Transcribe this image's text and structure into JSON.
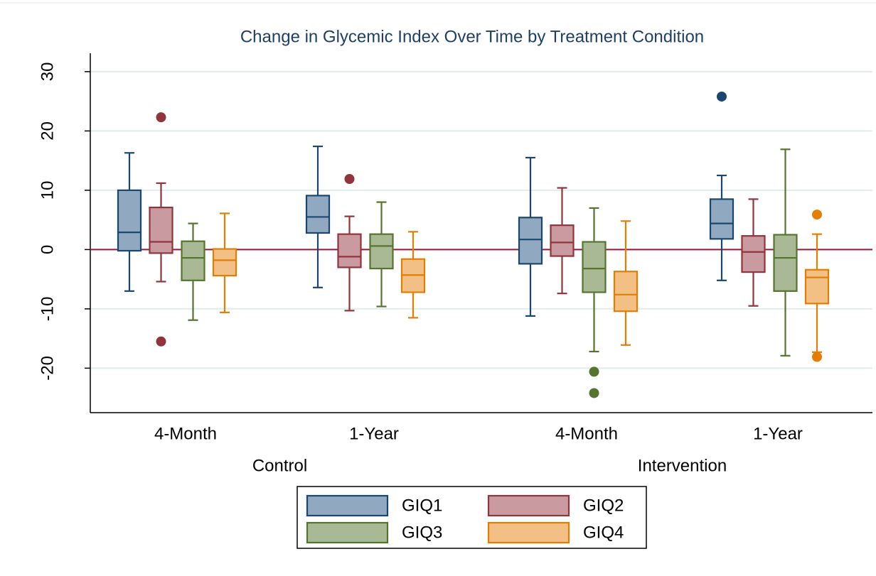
{
  "chart_data": {
    "type": "box",
    "title": "Change in Glycemic Index Over Time by Treatment Condition",
    "groups": [
      {
        "name": "Control",
        "categories": [
          "4-Month",
          "1-Year"
        ]
      },
      {
        "name": "Intervention",
        "categories": [
          "4-Month",
          "1-Year"
        ]
      }
    ],
    "ylim": [
      -27.5,
      32.5
    ],
    "yticks": [
      -20,
      -10,
      0,
      10,
      20,
      30
    ],
    "grid": true,
    "yline": 0,
    "yline_color": "#a0153e",
    "legend": "bottom",
    "series": [
      {
        "name": "GIQ1",
        "color": "#1a476f",
        "fill": "#90a8c0",
        "boxes": [
          {
            "min": -7.0,
            "q1": -0.2,
            "median": 2.9,
            "q3": 10.0,
            "max": 16.3
          },
          {
            "min": -6.4,
            "q1": 2.8,
            "median": 5.5,
            "q3": 9.1,
            "max": 17.4
          },
          {
            "min": -11.2,
            "q1": -2.4,
            "median": 1.7,
            "q3": 5.4,
            "max": 15.5
          },
          {
            "min": -5.2,
            "q1": 1.8,
            "median": 4.4,
            "q3": 8.5,
            "max": 12.5,
            "outliers": [
              25.8
            ]
          }
        ]
      },
      {
        "name": "GIQ2",
        "color": "#90353b",
        "fill": "#c99ba0",
        "boxes": [
          {
            "min": -5.4,
            "q1": -0.6,
            "median": 1.3,
            "q3": 7.1,
            "max": 11.2,
            "outliers": [
              22.3,
              -15.5
            ]
          },
          {
            "min": -10.3,
            "q1": -3.0,
            "median": -1.2,
            "q3": 2.6,
            "max": 5.6,
            "outliers": [
              11.9
            ]
          },
          {
            "min": -7.4,
            "q1": -1.1,
            "median": 1.2,
            "q3": 4.1,
            "max": 10.4
          },
          {
            "min": -9.5,
            "q1": -3.8,
            "median": -0.4,
            "q3": 2.3,
            "max": 8.5
          }
        ]
      },
      {
        "name": "GIQ3",
        "color": "#55752f",
        "fill": "#a9b995",
        "boxes": [
          {
            "min": -11.9,
            "q1": -5.2,
            "median": -1.4,
            "q3": 1.4,
            "max": 4.4
          },
          {
            "min": -9.6,
            "q1": -3.2,
            "median": 0.6,
            "q3": 2.6,
            "max": 8.0
          },
          {
            "min": -17.2,
            "q1": -7.2,
            "median": -3.2,
            "q3": 1.3,
            "max": 7.0,
            "outliers": [
              -20.6,
              -24.2
            ]
          },
          {
            "min": -17.9,
            "q1": -7.0,
            "median": -1.4,
            "q3": 2.5,
            "max": 16.9
          }
        ]
      },
      {
        "name": "GIQ4",
        "color": "#e37e00",
        "fill": "#f2c085",
        "boxes": [
          {
            "min": -10.6,
            "q1": -4.4,
            "median": -1.8,
            "q3": 0.1,
            "max": 6.1
          },
          {
            "min": -11.5,
            "q1": -7.2,
            "median": -4.3,
            "q3": -1.6,
            "max": 3.0
          },
          {
            "min": -16.1,
            "q1": -10.4,
            "median": -7.6,
            "q3": -3.7,
            "max": 4.8
          },
          {
            "min": -17.3,
            "q1": -9.1,
            "median": -4.7,
            "q3": -3.4,
            "max": 2.6,
            "outliers": [
              5.9,
              -18.1
            ]
          }
        ]
      }
    ]
  }
}
